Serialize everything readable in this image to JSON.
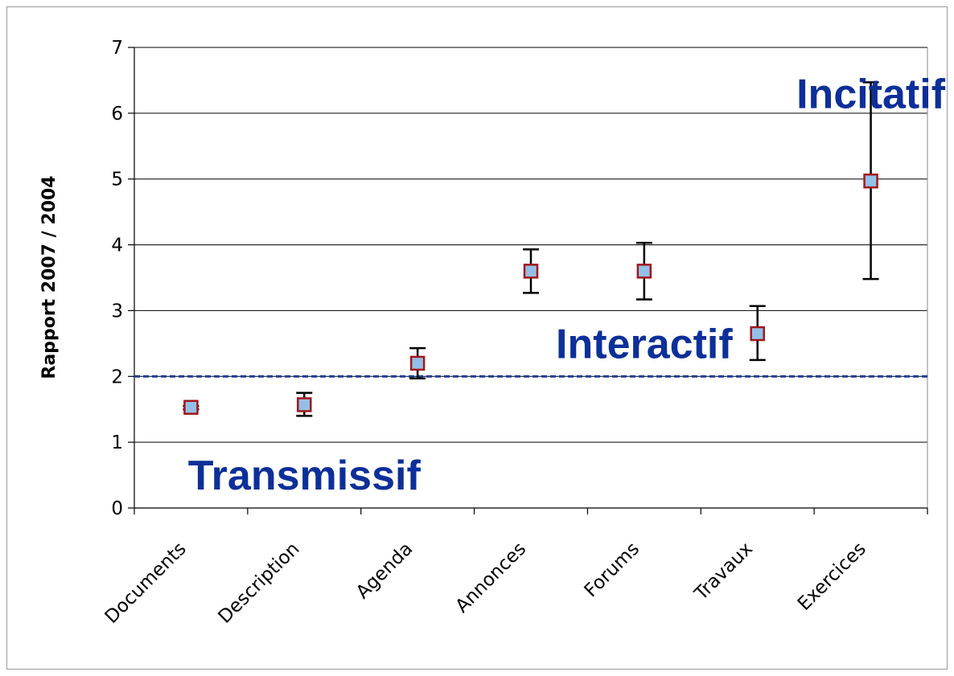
{
  "chart_data": {
    "type": "scatter",
    "ylabel": "Rapport 2007 / 2004",
    "xlabel": "",
    "ylim": [
      0,
      7
    ],
    "yticks": [
      0,
      1,
      2,
      3,
      4,
      5,
      6,
      7
    ],
    "grid": true,
    "categories": [
      "Documents",
      "Description",
      "Agenda",
      "Annonces",
      "Forums",
      "Travaux",
      "Exercices"
    ],
    "values": [
      1.53,
      1.57,
      2.2,
      3.6,
      3.6,
      2.65,
      4.97
    ],
    "error_low": [
      1.5,
      1.4,
      1.97,
      3.27,
      3.17,
      2.25,
      3.48
    ],
    "error_high": [
      1.55,
      1.75,
      2.43,
      3.93,
      4.03,
      3.07,
      6.47
    ],
    "reference_line": {
      "y": 2,
      "style": "dashed",
      "color": "#1f3c99"
    },
    "annotations": [
      {
        "text": "Transmissif",
        "x": "Description",
        "y": 0.5
      },
      {
        "text": "Interactif",
        "x": "Forums",
        "y": 2.5
      },
      {
        "text": "Incitatif",
        "x": "Exercices",
        "y": 6.3
      }
    ],
    "colors": {
      "marker_fill": "#93c0e8",
      "marker_edge": "#a3161b",
      "annotation": "#0d2f99",
      "errorbar": "#000000",
      "grid": "#000000"
    }
  }
}
